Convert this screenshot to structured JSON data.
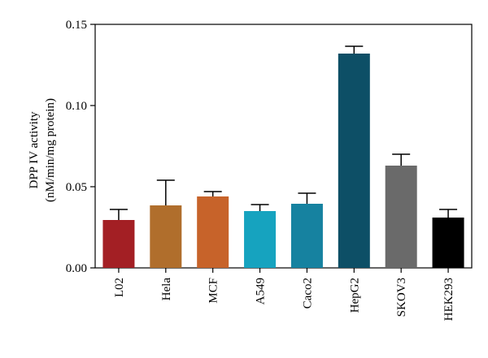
{
  "chart_data": {
    "type": "bar",
    "title": "",
    "xlabel": "",
    "ylabel_lines": [
      "DPP IV activity",
      "(nM/min/mg protein)"
    ],
    "ylim": [
      0,
      0.15
    ],
    "yticks": [
      "0.00",
      "0.05",
      "0.10",
      "0.15"
    ],
    "ytick_values": [
      0,
      0.05,
      0.1,
      0.15
    ],
    "grid": false,
    "legend": "none",
    "categories": [
      "L02",
      "Hela",
      "MCF",
      "A549",
      "Caco2",
      "HepG2",
      "SKOV3",
      "HEK293"
    ],
    "values": [
      0.0295,
      0.0385,
      0.044,
      0.035,
      0.0395,
      0.132,
      0.063,
      0.031
    ],
    "errors": [
      0.0065,
      0.0155,
      0.003,
      0.004,
      0.0065,
      0.0045,
      0.007,
      0.005
    ],
    "colors": [
      "#a31f24",
      "#b06e2c",
      "#c7632a",
      "#16a3bf",
      "#1682a0",
      "#0d4f66",
      "#6a6a6a",
      "#000000"
    ]
  }
}
